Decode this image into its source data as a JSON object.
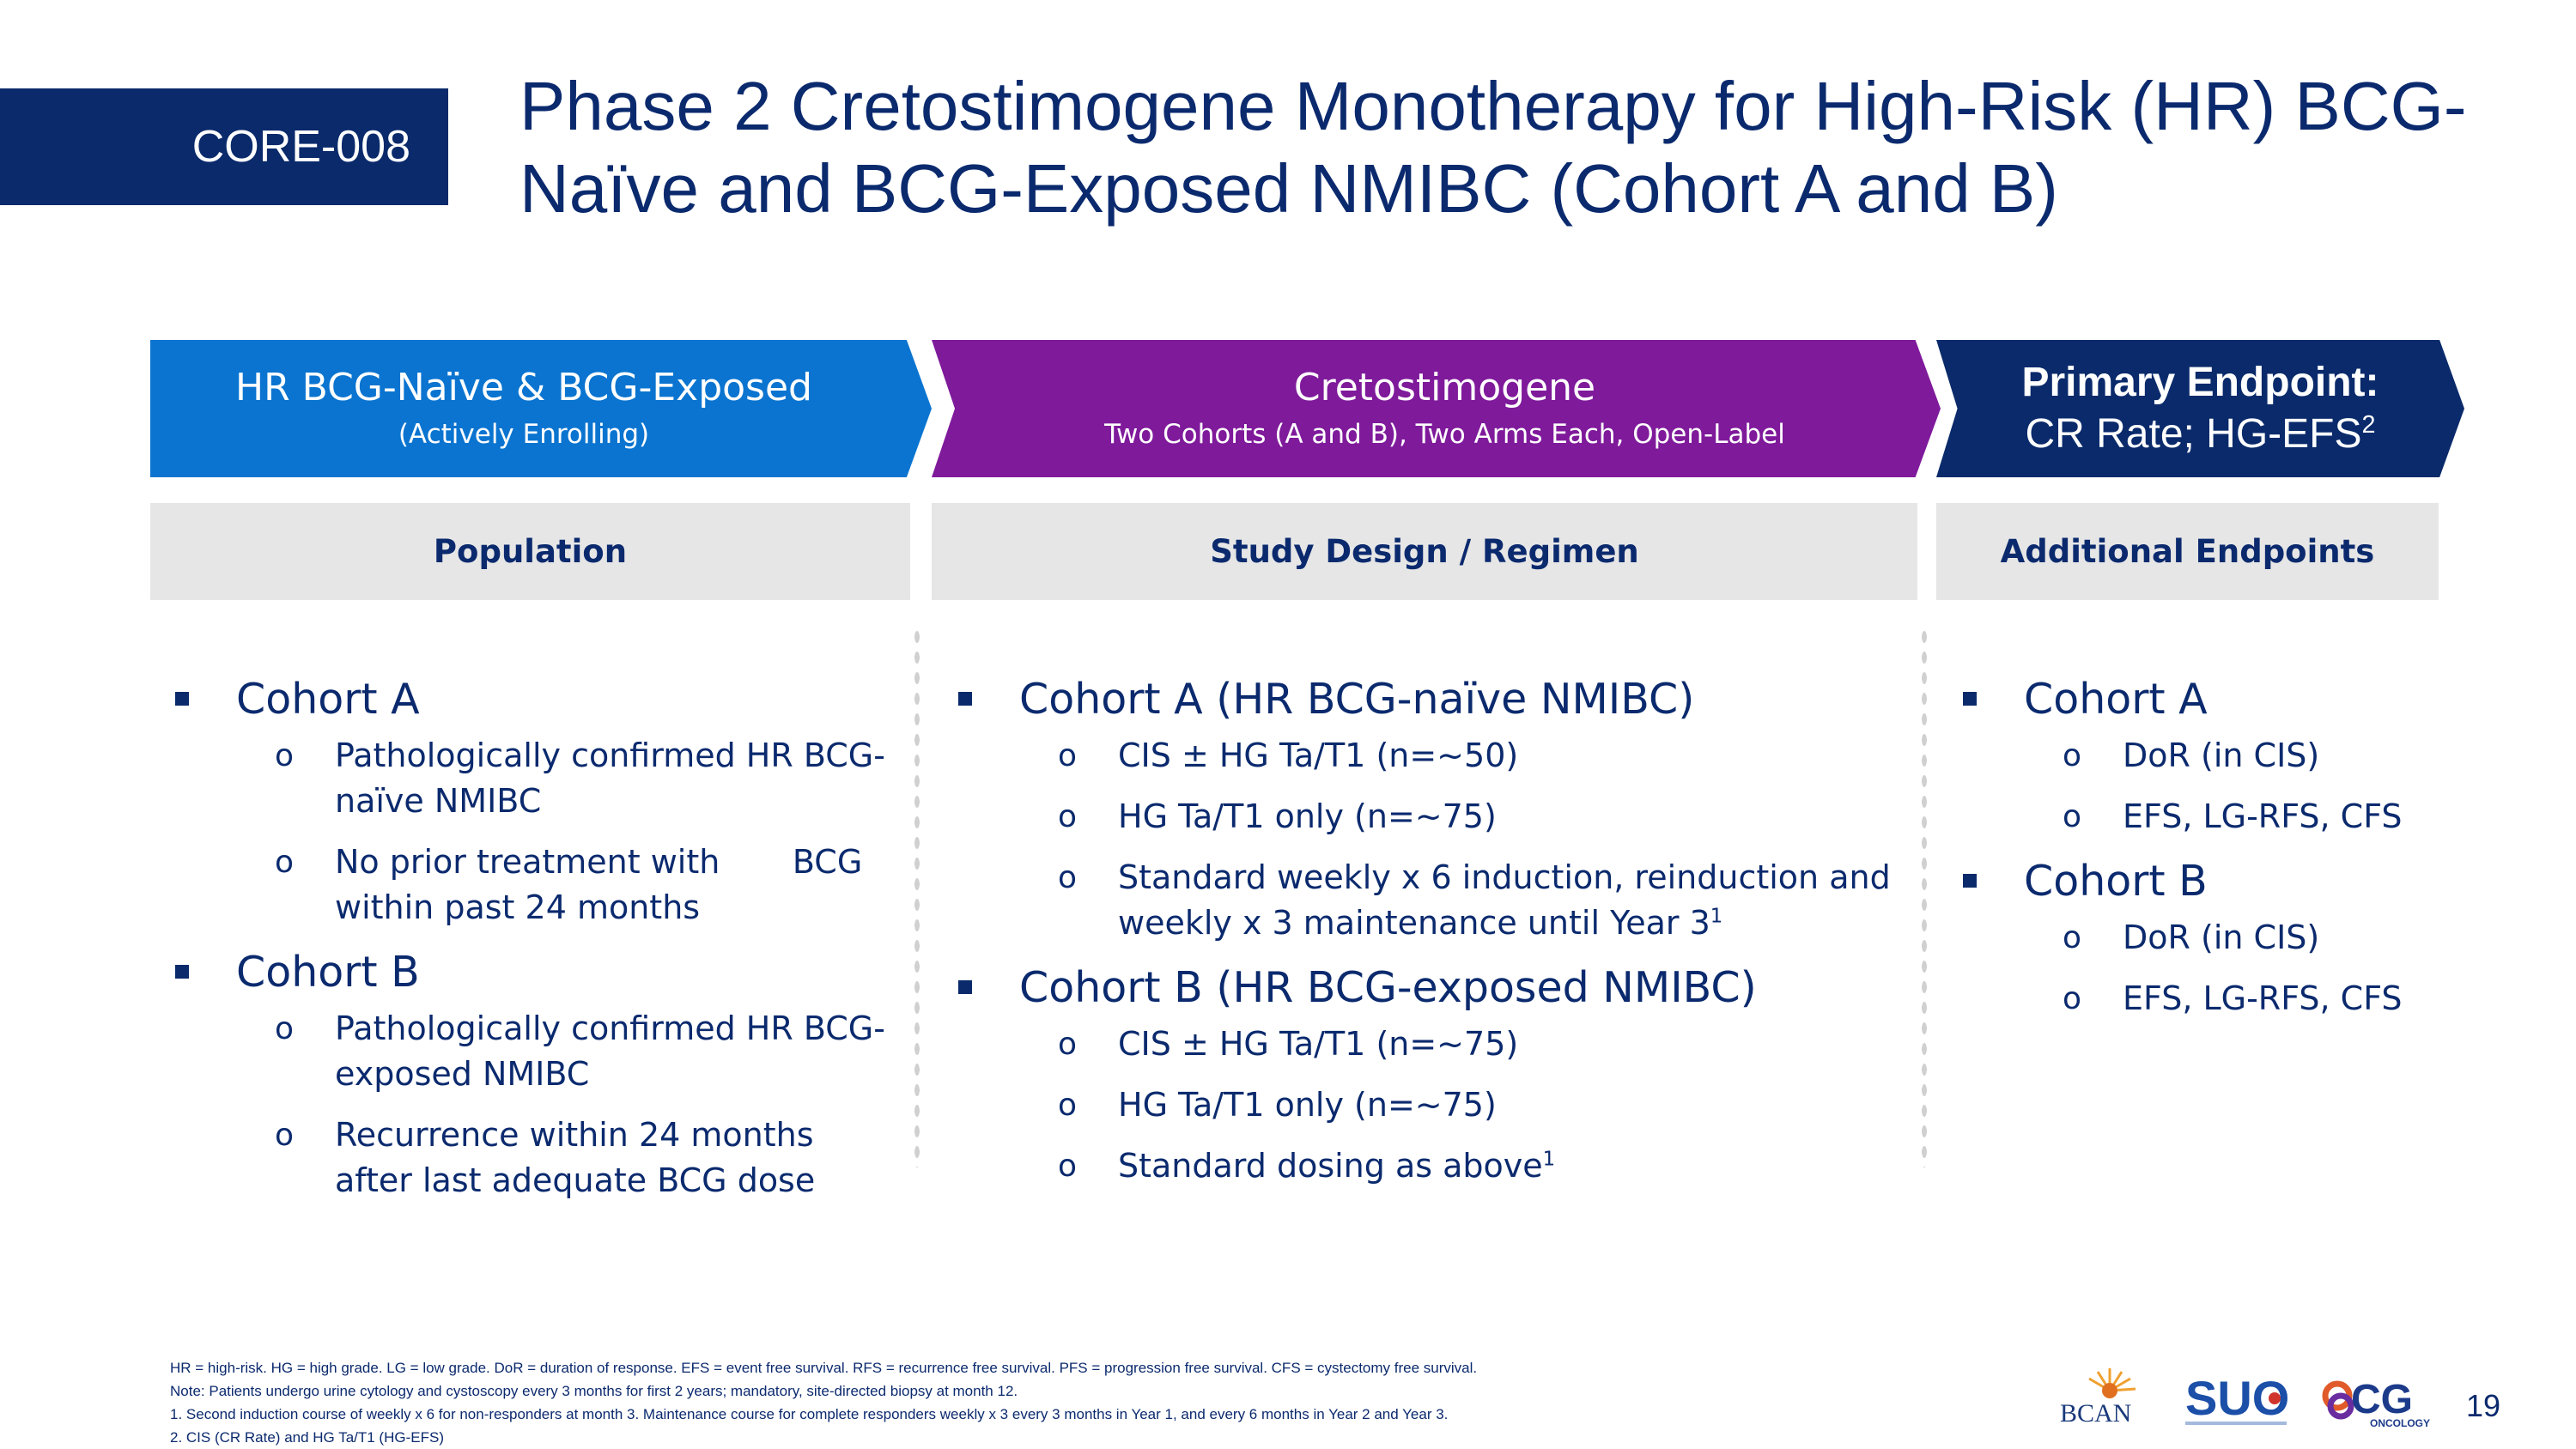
{
  "header": {
    "tag": "CORE-008",
    "title_line1": "Phase 2 Cretostimogene Monotherapy for High-Risk (HR) BCG-",
    "title_line2": "Naïve and BCG-Exposed NMIBC (Cohort A and B)"
  },
  "chevrons": {
    "population": {
      "title": "HR BCG-Naïve & BCG-Exposed",
      "sub": "(Actively Enrolling)"
    },
    "treatment": {
      "title": "Cretostimogene",
      "sub": "Two Cohorts (A and B), Two Arms Each, Open-Label"
    },
    "endpoint": {
      "title": "Primary Endpoint:",
      "sub": "CR Rate; HG-EFS",
      "sup": "2"
    }
  },
  "sections": {
    "population": "Population",
    "design": "Study Design / Regimen",
    "endpoints": "Additional Endpoints"
  },
  "population": {
    "cohort_a": {
      "label": "Cohort A",
      "items": [
        "Pathologically confirmed HR BCG-naïve NMIBC",
        "No prior treatment with       BCG within past 24 months"
      ]
    },
    "cohort_b": {
      "label": "Cohort B",
      "items": [
        "Pathologically confirmed HR BCG-exposed NMIBC",
        "Recurrence within 24 months after last adequate BCG dose"
      ]
    }
  },
  "design": {
    "cohort_a": {
      "label": "Cohort A (HR BCG-naïve NMIBC)",
      "items": [
        "CIS ± HG Ta/T1 (n=~50)",
        "HG Ta/T1 only (n=~75)",
        "Standard weekly x 6 induction, reinduction and weekly x 3 maintenance until Year 3"
      ],
      "sup3": "1"
    },
    "cohort_b": {
      "label": "Cohort B (HR BCG-exposed NMIBC)",
      "items": [
        "CIS ± HG Ta/T1 (n=~75)",
        "HG Ta/T1 only (n=~75)",
        "Standard dosing as above"
      ],
      "sup3": "1"
    }
  },
  "endpoints": {
    "cohort_a": {
      "label": "Cohort A",
      "items": [
        "DoR (in CIS)",
        "EFS, LG-RFS, CFS"
      ]
    },
    "cohort_b": {
      "label": "Cohort B",
      "items": [
        "DoR (in CIS)",
        "EFS, LG-RFS, CFS"
      ]
    }
  },
  "footnotes": [
    "HR = high-risk. HG = high grade. LG = low grade. DoR = duration of response. EFS = event free survival. RFS = recurrence free survival. PFS = progression free survival. CFS = cystectomy free survival.",
    "Note: Patients undergo urine cytology and cystoscopy every 3 months for first 2 years; mandatory, site-directed biopsy at month 12.",
    "1.  Second induction course of weekly x 6 for non-responders at month 3. Maintenance course for complete responders weekly x 3 every 3 months in Year 1, and every 6 months in Year 2 and Year 3.",
    "2.  CIS (CR Rate) and HG Ta/T1 (HG-EFS)"
  ],
  "logos": {
    "bcan": "BCAN",
    "suo": "SUO",
    "cg": "CG",
    "cg_sub": "ONCOLOGY"
  },
  "page_number": "19",
  "colors": {
    "navy": "#0a2a6b",
    "blue": "#0a74d0",
    "purple": "#7f1a9b",
    "gray": "#e6e6e6"
  }
}
